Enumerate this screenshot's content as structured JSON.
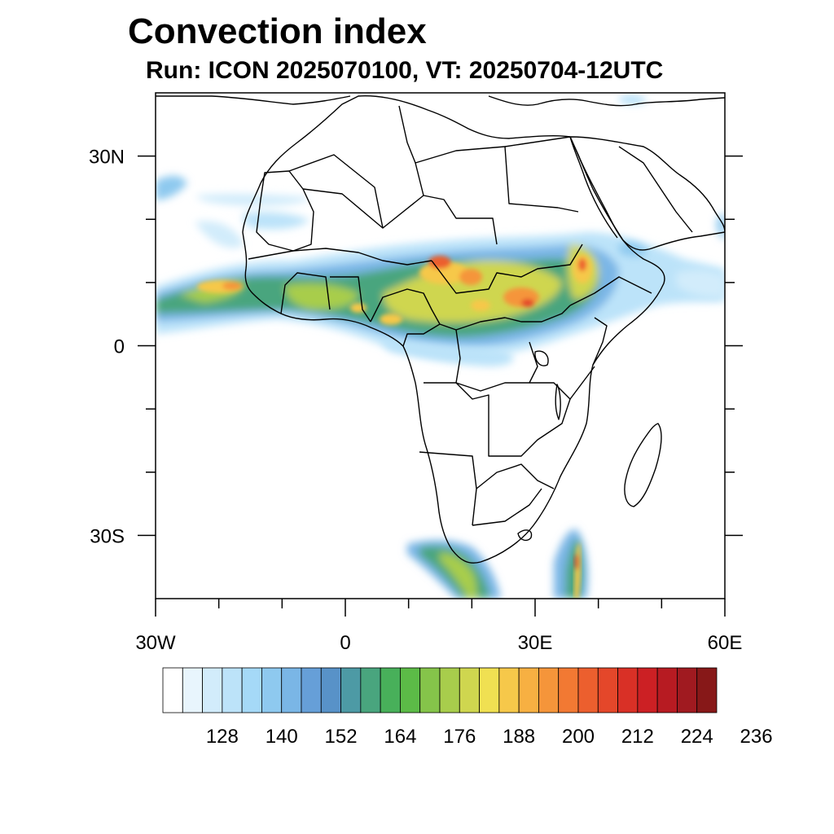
{
  "title": "Convection index",
  "subtitle": "Run: ICON 2025070100,  VT: 20250704-12UTC",
  "map": {
    "projection": "lat-lon",
    "lon_range": [
      -30,
      60
    ],
    "lat_range": [
      -40,
      40
    ],
    "lon_ticks": [
      {
        "value": -30,
        "label": "30W"
      },
      {
        "value": 0,
        "label": "0"
      },
      {
        "value": 30,
        "label": "30E"
      },
      {
        "value": 60,
        "label": "60E"
      }
    ],
    "lat_ticks": [
      {
        "value": 30,
        "label": "30N"
      },
      {
        "value": 0,
        "label": "0"
      },
      {
        "value": -30,
        "label": "30S"
      }
    ],
    "minor_lon_ticks": [
      -20,
      -10,
      10,
      20,
      40,
      50
    ],
    "minor_lat_ticks": [
      20,
      10,
      -10,
      -20
    ]
  },
  "colorbar": {
    "orientation": "horizontal",
    "colors": [
      "#ffffff",
      "#e8f5fd",
      "#d2ecfb",
      "#bce3f9",
      "#a5d9f7",
      "#8ec9ef",
      "#7ab6e6",
      "#669fd8",
      "#5892c8",
      "#4d9aa5",
      "#49a57e",
      "#48b05a",
      "#5cbb47",
      "#85c44a",
      "#a8cd4c",
      "#cfd64f",
      "#f0e052",
      "#f6c84a",
      "#f7b042",
      "#f5953a",
      "#f27933",
      "#ec5f2e",
      "#e4472a",
      "#d93026",
      "#cc2024",
      "#b71b22",
      "#a01a20",
      "#871818"
    ],
    "labels": [
      "128",
      "140",
      "152",
      "164",
      "176",
      "188",
      "200",
      "212",
      "224",
      "236"
    ]
  }
}
